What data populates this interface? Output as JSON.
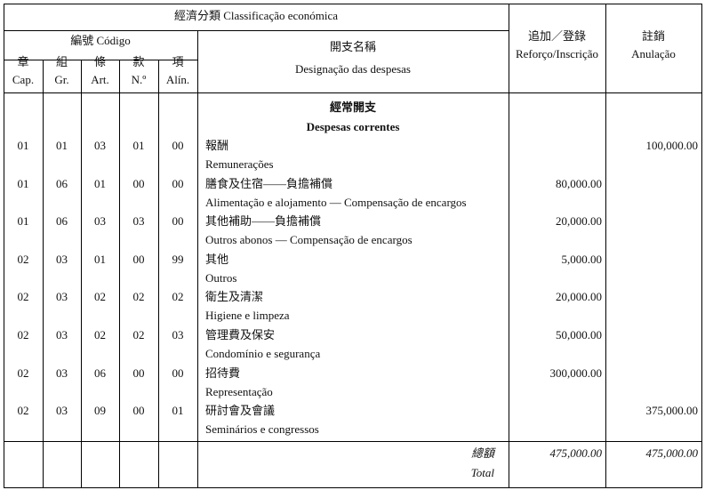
{
  "header": {
    "classification": "經濟分類  Classificação económica",
    "code": "編號 Código",
    "code_columns": [
      {
        "zh": "章",
        "pt": "Cap."
      },
      {
        "zh": "組",
        "pt": "Gr."
      },
      {
        "zh": "條",
        "pt": "Art."
      },
      {
        "zh": "款",
        "pt": "N.º"
      },
      {
        "zh": "項",
        "pt": "Alín."
      }
    ],
    "designation_zh": "開支名稱",
    "designation_pt": "Designação das despesas",
    "reinforcement_zh": "追加／登錄",
    "reinforcement_pt": "Reforço/Inscrição",
    "cancel_zh": "註銷",
    "cancel_pt": "Anulação"
  },
  "section": {
    "zh": "經常開支",
    "pt": "Despesas correntes"
  },
  "rows": [
    {
      "code": [
        "01",
        "01",
        "03",
        "01",
        "00"
      ],
      "zh": "報酬",
      "pt": "Remunerações",
      "reinforcement": "",
      "cancel": "100,000.00"
    },
    {
      "code": [
        "01",
        "06",
        "01",
        "00",
        "00"
      ],
      "zh": "膳食及住宿——負擔補償",
      "pt": "Alimentação e alojamento — Compensação de encargos",
      "reinforcement": "80,000.00",
      "cancel": ""
    },
    {
      "code": [
        "01",
        "06",
        "03",
        "03",
        "00"
      ],
      "zh": "其他補助——負擔補償",
      "pt": "Outros abonos — Compensação de encargos",
      "reinforcement": "20,000.00",
      "cancel": ""
    },
    {
      "code": [
        "02",
        "03",
        "01",
        "00",
        "99"
      ],
      "zh": "其他",
      "pt": "Outros",
      "reinforcement": "5,000.00",
      "cancel": ""
    },
    {
      "code": [
        "02",
        "03",
        "02",
        "02",
        "02"
      ],
      "zh": "衛生及清潔",
      "pt": "Higiene e limpeza",
      "reinforcement": "20,000.00",
      "cancel": ""
    },
    {
      "code": [
        "02",
        "03",
        "02",
        "02",
        "03"
      ],
      "zh": "管理費及保安",
      "pt": "Condomínio e segurança",
      "reinforcement": "50,000.00",
      "cancel": ""
    },
    {
      "code": [
        "02",
        "03",
        "06",
        "00",
        "00"
      ],
      "zh": "招待費",
      "pt": "Representação",
      "reinforcement": "300,000.00",
      "cancel": ""
    },
    {
      "code": [
        "02",
        "03",
        "09",
        "00",
        "01"
      ],
      "zh": "研討會及會議",
      "pt": "Seminários e congressos",
      "reinforcement": "",
      "cancel": "375,000.00"
    }
  ],
  "total": {
    "zh": "總額",
    "pt": "Total",
    "reinforcement": "475,000.00",
    "cancel": "475,000.00"
  }
}
